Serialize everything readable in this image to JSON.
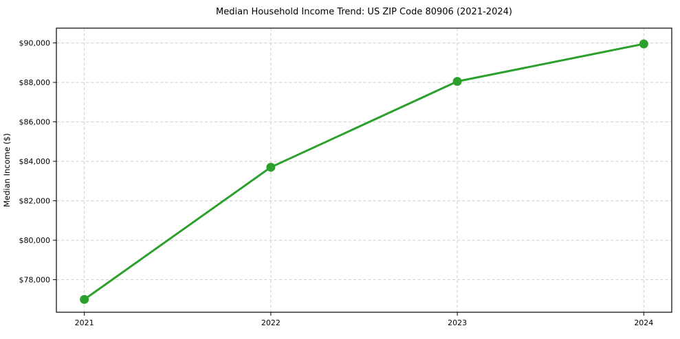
{
  "chart_data": {
    "type": "line",
    "title": "Median Household Income Trend: US ZIP Code 80906 (2021-2024)",
    "xlabel": "",
    "ylabel": "Median Income ($)",
    "x": [
      2021,
      2022,
      2023,
      2024
    ],
    "x_tick_labels": [
      "2021",
      "2022",
      "2023",
      "2024"
    ],
    "series": [
      {
        "name": "Median Household Income",
        "values": [
          77000,
          83700,
          88050,
          89950
        ],
        "color": "#2ca02c",
        "marker": "circle"
      }
    ],
    "yticks": [
      78000,
      80000,
      82000,
      84000,
      86000,
      88000,
      90000
    ],
    "y_tick_labels": [
      "$78,000",
      "$80,000",
      "$82,000",
      "$84,000",
      "$86,000",
      "$88,000",
      "$90,000"
    ],
    "xlim": [
      2020.85,
      2024.15
    ],
    "ylim": [
      76350,
      90750
    ],
    "grid": true,
    "grid_style": "dashed",
    "legend_position": "none"
  },
  "colors": {
    "line": "#2ca02c",
    "grid": "#cccccc",
    "axis": "#000000",
    "text": "#000000",
    "background": "#ffffff"
  }
}
